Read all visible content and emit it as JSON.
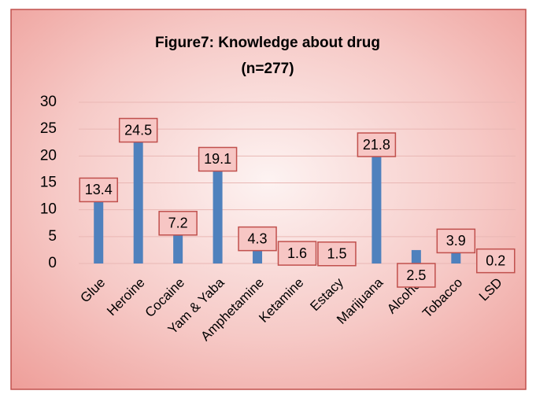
{
  "chart_data": {
    "type": "bar",
    "title": "Figure7: Knowledge about drug",
    "subtitle": "(n=277)",
    "categories": [
      "Glue",
      "Heroine",
      "Cocaine",
      "Yam & Yaba",
      "Amphetamine",
      "Ketamine",
      "Estacy",
      "Marijuana",
      "Alcohol",
      "Tobacco",
      "LSD"
    ],
    "values": [
      13.4,
      24.5,
      7.2,
      19.1,
      4.3,
      1.6,
      1.5,
      21.8,
      2.5,
      3.9,
      0.2
    ],
    "color": "#4f81bd",
    "ylim": [
      0,
      30
    ],
    "yticks": [
      0,
      5,
      10,
      15,
      20,
      25,
      30
    ],
    "grid": true
  }
}
